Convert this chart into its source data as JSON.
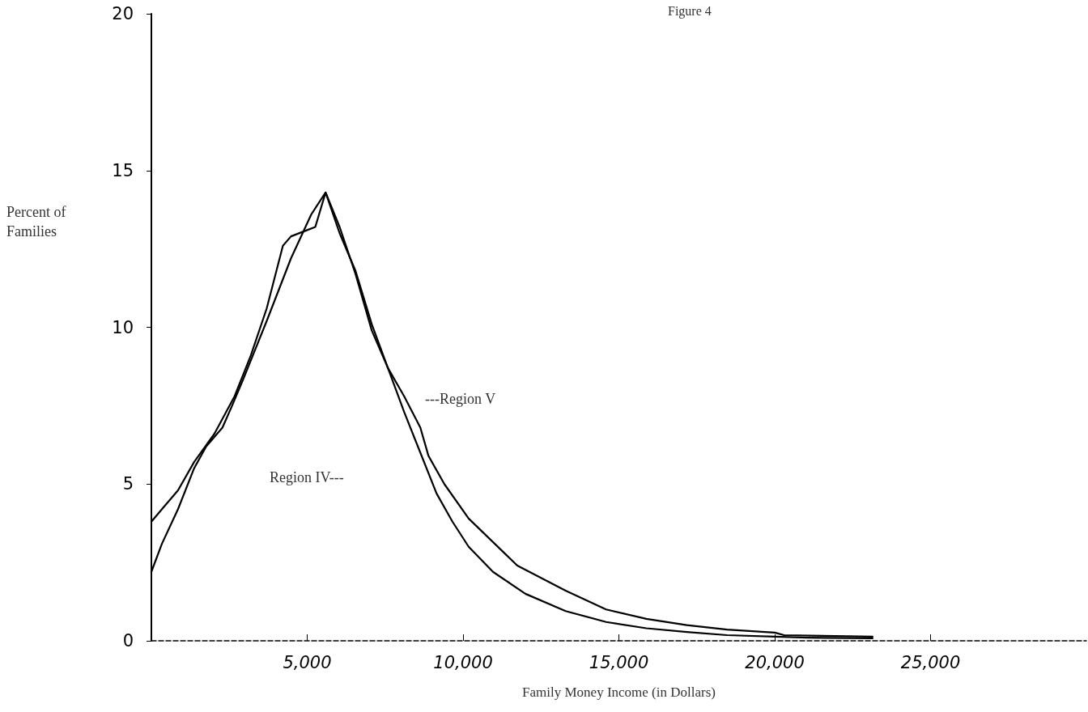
{
  "chart_data": {
    "type": "line",
    "title": "Figure 4",
    "xlabel": "Family Money Income (in Dollars)",
    "ylabel": "Percent of Families",
    "xlim": [
      0,
      30000
    ],
    "xticks": [
      {
        "value": 5000,
        "label": "5,000"
      },
      {
        "value": 10000,
        "label": "10,000"
      },
      {
        "value": 15000,
        "label": "15,000"
      },
      {
        "value": 20000,
        "label": "20,000"
      },
      {
        "value": 25000,
        "label": "25,000"
      }
    ],
    "ylim": [
      0,
      20
    ],
    "yticks": [
      0,
      5,
      10,
      15,
      20
    ],
    "grid": false,
    "marker": "none",
    "line_style": "solid",
    "series": [
      {
        "color": "#000000",
        "x": [
          0,
          340,
          855,
          1370,
          2020,
          2670,
          3190,
          3700,
          4220,
          4480,
          5000,
          5260,
          5590,
          6040,
          6550,
          7070,
          7590,
          8110,
          8630,
          9150,
          9660,
          10180,
          10960,
          12000,
          13290,
          14590,
          15880,
          17180,
          18470,
          20000,
          21060,
          23140
        ],
        "values": [
          3.8,
          4.2,
          4.8,
          5.7,
          6.6,
          7.8,
          9.1,
          10.6,
          12.6,
          12.9,
          13.1,
          13.2,
          14.3,
          13.0,
          11.8,
          10.1,
          8.7,
          7.3,
          6.0,
          4.7,
          3.8,
          3.0,
          2.2,
          1.5,
          0.95,
          0.6,
          0.4,
          0.28,
          0.18,
          0.13,
          0.1,
          0.08
        ]
      },
      {
        "color": "#000000",
        "x": [
          0,
          340,
          855,
          1370,
          1760,
          2280,
          2590,
          2930,
          3700,
          4480,
          5130,
          5590,
          6040,
          6550,
          7070,
          7590,
          8110,
          8630,
          8890,
          9400,
          10180,
          11220,
          11740,
          13290,
          14590,
          15880,
          17180,
          18470,
          20000,
          20300,
          23140
        ],
        "values": [
          2.2,
          3.1,
          4.2,
          5.5,
          6.2,
          6.8,
          7.5,
          8.3,
          10.2,
          12.2,
          13.6,
          14.3,
          13.2,
          11.7,
          9.9,
          8.7,
          7.8,
          6.8,
          5.9,
          5.0,
          3.9,
          2.9,
          2.4,
          1.6,
          1.0,
          0.7,
          0.5,
          0.36,
          0.26,
          0.18,
          0.13
        ]
      }
    ],
    "annotations": [
      "Region IV---",
      "---Region V"
    ]
  }
}
